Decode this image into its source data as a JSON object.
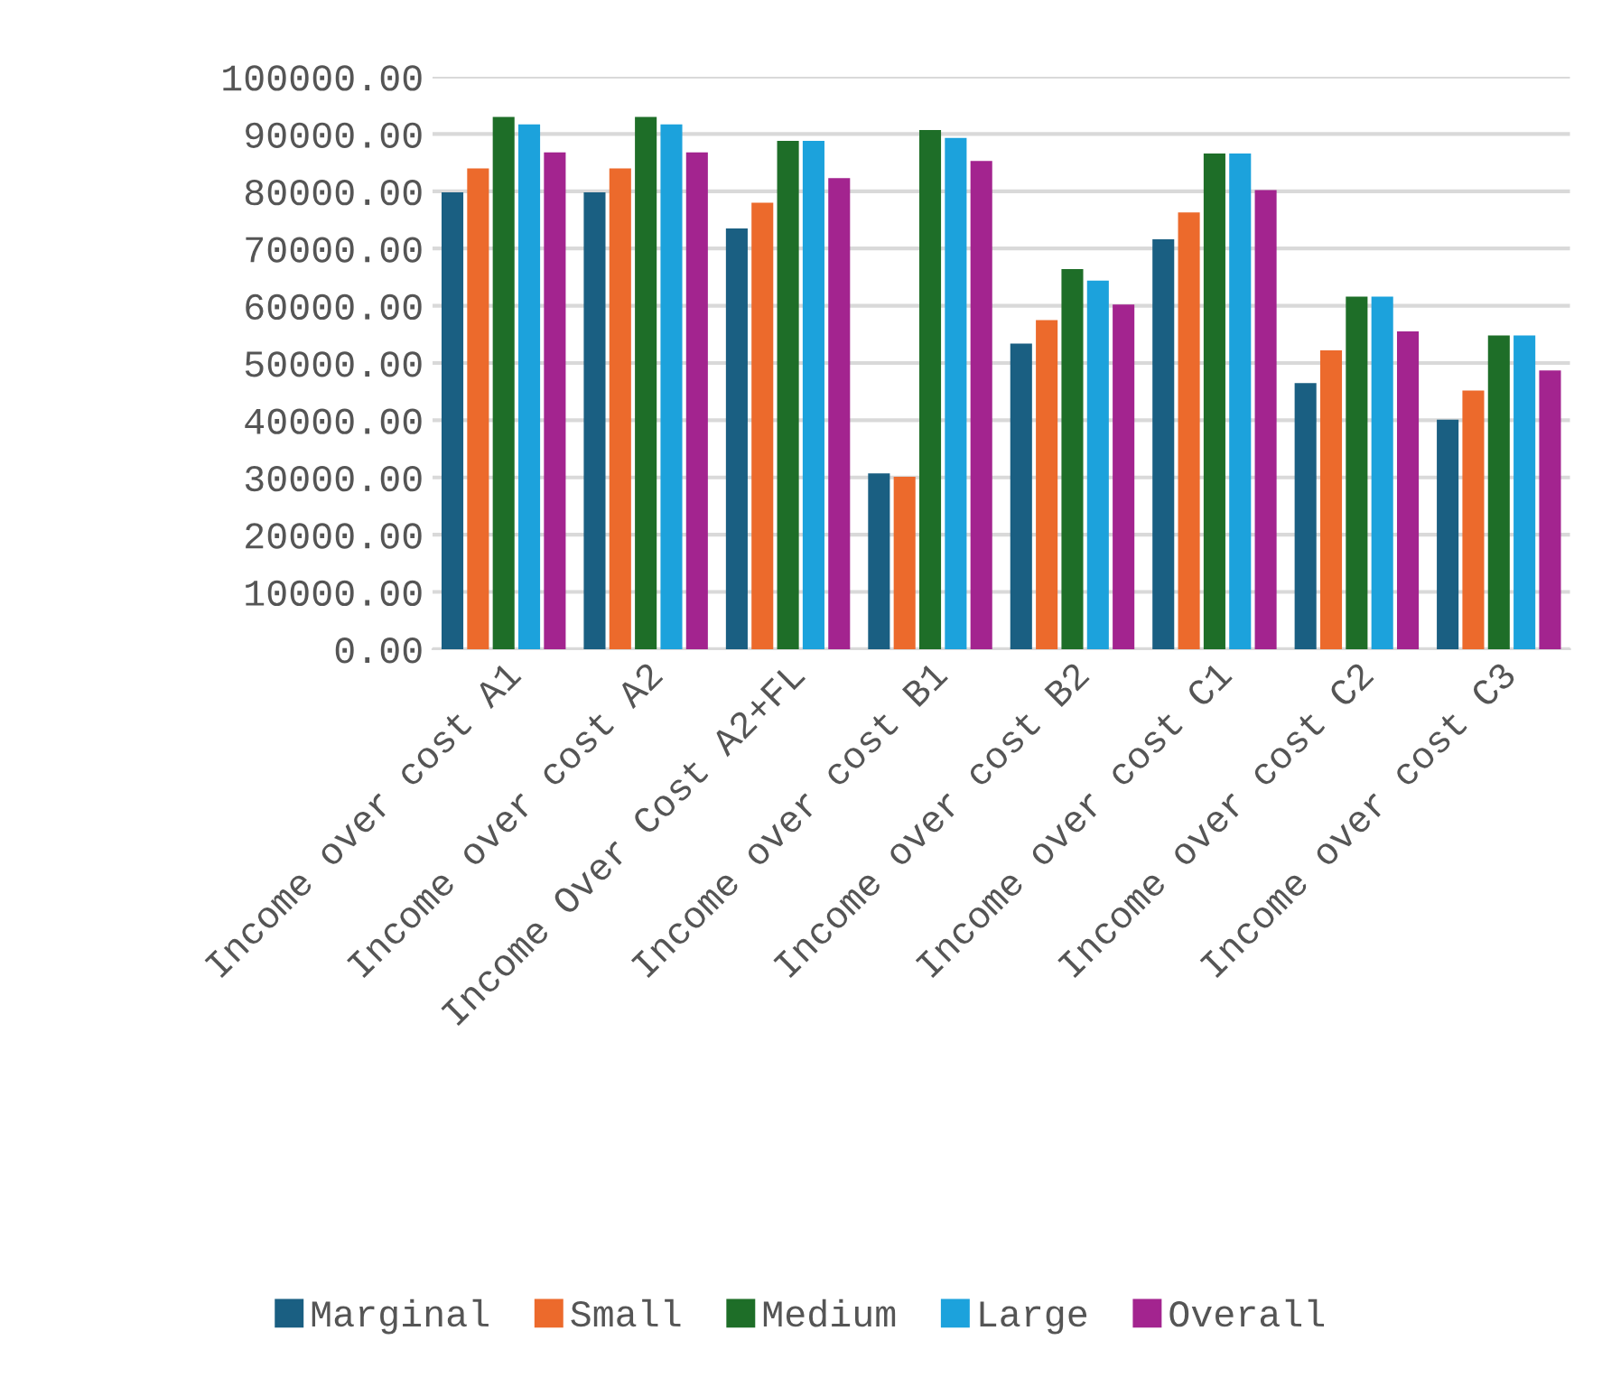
{
  "chart_data": {
    "type": "bar",
    "categories": [
      "Income over cost A1",
      "Income over cost A2",
      "Income Over Cost A2+FL",
      "Income over cost B1",
      "Income over cost B2",
      "Income over cost C1",
      "Income over cost C2",
      "Income over cost C3"
    ],
    "series": [
      {
        "name": "Marginal",
        "color": "#1a5f82",
        "values": [
          79800,
          79800,
          73500,
          30700,
          53400,
          71600,
          46500,
          40100
        ]
      },
      {
        "name": "Small",
        "color": "#ec6a2c",
        "values": [
          84000,
          84000,
          78000,
          30100,
          57500,
          76300,
          52200,
          45200
        ]
      },
      {
        "name": "Medium",
        "color": "#1e6e28",
        "values": [
          93000,
          93000,
          88800,
          90700,
          66400,
          86600,
          61600,
          54800
        ]
      },
      {
        "name": "Large",
        "color": "#1ca2dc",
        "values": [
          91700,
          91700,
          88800,
          89300,
          64400,
          86600,
          61600,
          54800
        ]
      },
      {
        "name": "Overall",
        "color": "#a3248f",
        "values": [
          86800,
          86800,
          82300,
          85300,
          60200,
          80200,
          55500,
          48700
        ]
      }
    ],
    "ylim": [
      0,
      100000
    ],
    "yticks": [
      {
        "value": 0,
        "label": "0.00"
      },
      {
        "value": 10000,
        "label": "10000.00"
      },
      {
        "value": 20000,
        "label": "20000.00"
      },
      {
        "value": 30000,
        "label": "30000.00"
      },
      {
        "value": 40000,
        "label": "40000.00"
      },
      {
        "value": 50000,
        "label": "50000.00"
      },
      {
        "value": 60000,
        "label": "60000.00"
      },
      {
        "value": 70000,
        "label": "70000.00"
      },
      {
        "value": 80000,
        "label": "80000.00"
      },
      {
        "value": 90000,
        "label": "90000.00"
      },
      {
        "value": 100000,
        "label": "100000.00"
      }
    ],
    "grid": "y",
    "legend": "bottom"
  }
}
